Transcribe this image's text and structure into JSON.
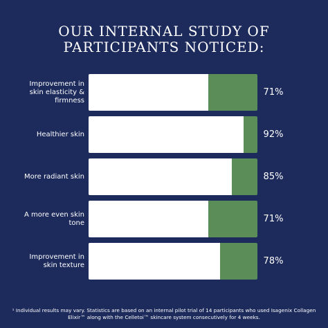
{
  "chart_data": {
    "type": "bar",
    "orientation": "horizontal",
    "title": "OUR INTERNAL STUDY OF PARTICIPANTS NOTICED:",
    "categories": [
      "Improvement in skin elasticity & firmness",
      "Healthier skin",
      "More radiant skin",
      "A more even skin tone",
      "Improvement in skin texture"
    ],
    "values": [
      71,
      92,
      85,
      71,
      78
    ],
    "value_labels": [
      "71%",
      "92%",
      "85%",
      "71%",
      "78%"
    ],
    "color": "#ffffff",
    "background_color": "#5a8d58",
    "xlim": [
      0,
      100
    ],
    "footnote": "¹ Individual results may vary. Statistics are based on an internal pilot trial of 14 participants who used Isagenix Collagen Elixir™ along with the Celletoi™ skincare system consecutively for 4 weeks."
  }
}
